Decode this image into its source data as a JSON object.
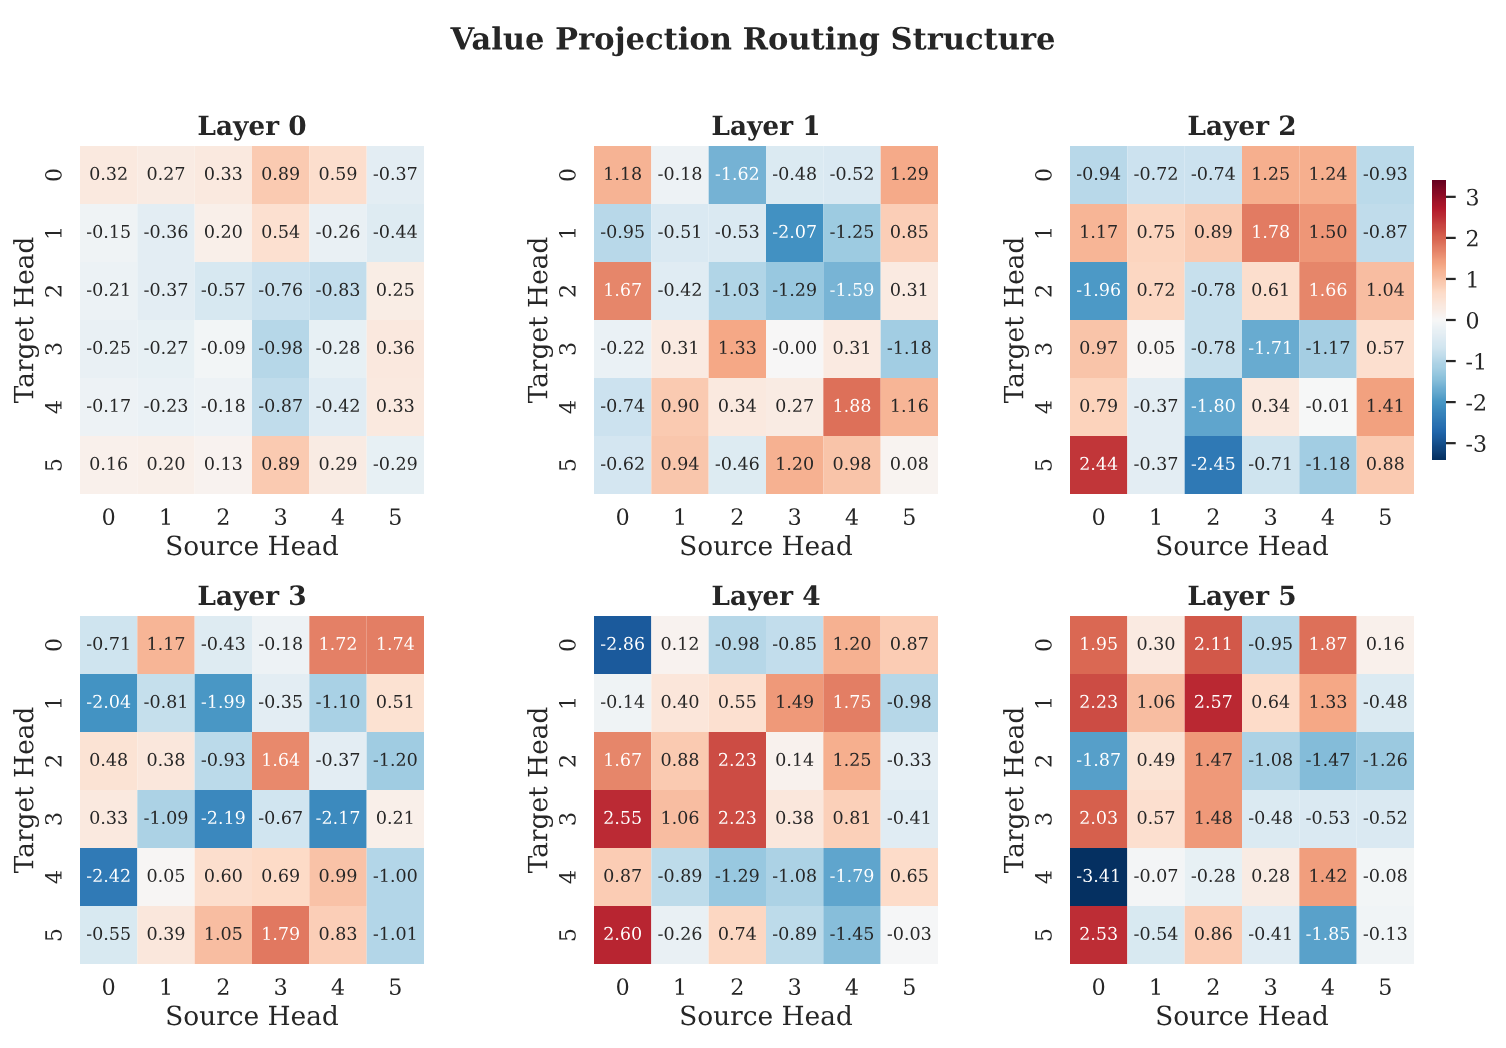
{
  "chart_data": [
    {
      "type": "heatmap",
      "title": "Layer 0",
      "annotations": [
        "Value Projection Routing Structure"
      ],
      "xlabel": "Source Head",
      "ylabel": "Target Head",
      "categories": [
        "0",
        "1",
        "2",
        "3",
        "4",
        "5"
      ],
      "y_categories": [
        "0",
        "1",
        "2",
        "3",
        "4",
        "5"
      ],
      "cells": [
        [
          0.32,
          0.27,
          0.33,
          0.89,
          0.59,
          -0.37
        ],
        [
          -0.15,
          -0.36,
          0.2,
          0.54,
          -0.26,
          -0.44
        ],
        [
          -0.21,
          -0.37,
          -0.57,
          -0.76,
          -0.83,
          0.25
        ],
        [
          -0.25,
          -0.27,
          -0.09,
          -0.98,
          -0.28,
          0.36
        ],
        [
          -0.17,
          -0.23,
          -0.18,
          -0.87,
          -0.42,
          0.33
        ],
        [
          0.16,
          0.2,
          0.13,
          0.89,
          0.29,
          -0.29
        ]
      ],
      "cell_labels": [
        [
          "0.32",
          "0.27",
          "0.33",
          "0.89",
          "0.59",
          "-0.37"
        ],
        [
          "-0.15",
          "-0.36",
          "0.20",
          "0.54",
          "-0.26",
          "-0.44"
        ],
        [
          "-0.21",
          "-0.37",
          "-0.57",
          "-0.76",
          "-0.83",
          "0.25"
        ],
        [
          "-0.25",
          "-0.27",
          "-0.09",
          "-0.98",
          "-0.28",
          "0.36"
        ],
        [
          "-0.17",
          "-0.23",
          "-0.18",
          "-0.87",
          "-0.42",
          "0.33"
        ],
        [
          "0.16",
          "0.20",
          "0.13",
          "0.89",
          "0.29",
          "-0.29"
        ]
      ]
    },
    {
      "type": "heatmap",
      "title": "Layer 1",
      "xlabel": "Source Head",
      "ylabel": "Target Head",
      "categories": [
        "0",
        "1",
        "2",
        "3",
        "4",
        "5"
      ],
      "y_categories": [
        "0",
        "1",
        "2",
        "3",
        "4",
        "5"
      ],
      "cells": [
        [
          1.18,
          -0.18,
          -1.62,
          -0.48,
          -0.52,
          1.29
        ],
        [
          -0.95,
          -0.51,
          -0.53,
          -2.07,
          -1.25,
          0.85
        ],
        [
          1.67,
          -0.42,
          -1.03,
          -1.29,
          -1.59,
          0.31
        ],
        [
          -0.22,
          0.31,
          1.33,
          0.0,
          0.31,
          -1.18
        ],
        [
          -0.74,
          0.9,
          0.34,
          0.27,
          1.88,
          1.16
        ],
        [
          -0.62,
          0.94,
          -0.46,
          1.2,
          0.98,
          0.08
        ]
      ],
      "cell_labels": [
        [
          "1.18",
          "-0.18",
          "-1.62",
          "-0.48",
          "-0.52",
          "1.29"
        ],
        [
          "-0.95",
          "-0.51",
          "-0.53",
          "-2.07",
          "-1.25",
          "0.85"
        ],
        [
          "1.67",
          "-0.42",
          "-1.03",
          "-1.29",
          "-1.59",
          "0.31"
        ],
        [
          "-0.22",
          "0.31",
          "1.33",
          "-0.00",
          "0.31",
          "-1.18"
        ],
        [
          "-0.74",
          "0.90",
          "0.34",
          "0.27",
          "1.88",
          "1.16"
        ],
        [
          "-0.62",
          "0.94",
          "-0.46",
          "1.20",
          "0.98",
          "0.08"
        ]
      ]
    },
    {
      "type": "heatmap",
      "title": "Layer 2",
      "xlabel": "Source Head",
      "ylabel": "Target Head",
      "categories": [
        "0",
        "1",
        "2",
        "3",
        "4",
        "5"
      ],
      "y_categories": [
        "0",
        "1",
        "2",
        "3",
        "4",
        "5"
      ],
      "clim": [
        -3.41,
        3.41
      ],
      "cticks": [
        -3,
        -2,
        -1,
        0,
        1,
        2,
        3
      ],
      "cells": [
        [
          -0.94,
          -0.72,
          -0.74,
          1.25,
          1.24,
          -0.93
        ],
        [
          1.17,
          0.75,
          0.89,
          1.78,
          1.5,
          -0.87
        ],
        [
          -1.96,
          0.72,
          -0.78,
          0.61,
          1.66,
          1.04
        ],
        [
          0.97,
          0.05,
          -0.78,
          -1.71,
          -1.17,
          0.57
        ],
        [
          0.79,
          -0.37,
          -1.8,
          0.34,
          -0.01,
          1.41
        ],
        [
          2.44,
          -0.37,
          -2.45,
          -0.71,
          -1.18,
          0.88
        ]
      ],
      "cell_labels": [
        [
          "-0.94",
          "-0.72",
          "-0.74",
          "1.25",
          "1.24",
          "-0.93"
        ],
        [
          "1.17",
          "0.75",
          "0.89",
          "1.78",
          "1.50",
          "-0.87"
        ],
        [
          "-1.96",
          "0.72",
          "-0.78",
          "0.61",
          "1.66",
          "1.04"
        ],
        [
          "0.97",
          "0.05",
          "-0.78",
          "-1.71",
          "-1.17",
          "0.57"
        ],
        [
          "0.79",
          "-0.37",
          "-1.80",
          "0.34",
          "-0.01",
          "1.41"
        ],
        [
          "2.44",
          "-0.37",
          "-2.45",
          "-0.71",
          "-1.18",
          "0.88"
        ]
      ]
    },
    {
      "type": "heatmap",
      "title": "Layer 3",
      "xlabel": "Source Head",
      "ylabel": "Target Head",
      "categories": [
        "0",
        "1",
        "2",
        "3",
        "4",
        "5"
      ],
      "y_categories": [
        "0",
        "1",
        "2",
        "3",
        "4",
        "5"
      ],
      "cells": [
        [
          -0.71,
          1.17,
          -0.43,
          -0.18,
          1.72,
          1.74
        ],
        [
          -2.04,
          -0.81,
          -1.99,
          -0.35,
          -1.1,
          0.51
        ],
        [
          0.48,
          0.38,
          -0.93,
          1.64,
          -0.37,
          -1.2
        ],
        [
          0.33,
          -1.09,
          -2.19,
          -0.67,
          -2.17,
          0.21
        ],
        [
          -2.42,
          0.05,
          0.6,
          0.69,
          0.99,
          -1.0
        ],
        [
          -0.55,
          0.39,
          1.05,
          1.79,
          0.83,
          -1.01
        ]
      ],
      "cell_labels": [
        [
          "-0.71",
          "1.17",
          "-0.43",
          "-0.18",
          "1.72",
          "1.74"
        ],
        [
          "-2.04",
          "-0.81",
          "-1.99",
          "-0.35",
          "-1.10",
          "0.51"
        ],
        [
          "0.48",
          "0.38",
          "-0.93",
          "1.64",
          "-0.37",
          "-1.20"
        ],
        [
          "0.33",
          "-1.09",
          "-2.19",
          "-0.67",
          "-2.17",
          "0.21"
        ],
        [
          "-2.42",
          "0.05",
          "0.60",
          "0.69",
          "0.99",
          "-1.00"
        ],
        [
          "-0.55",
          "0.39",
          "1.05",
          "1.79",
          "0.83",
          "-1.01"
        ]
      ]
    },
    {
      "type": "heatmap",
      "title": "Layer 4",
      "xlabel": "Source Head",
      "ylabel": "Target Head",
      "categories": [
        "0",
        "1",
        "2",
        "3",
        "4",
        "5"
      ],
      "y_categories": [
        "0",
        "1",
        "2",
        "3",
        "4",
        "5"
      ],
      "cells": [
        [
          -2.86,
          0.12,
          -0.98,
          -0.85,
          1.2,
          0.87
        ],
        [
          -0.14,
          0.4,
          0.55,
          1.49,
          1.75,
          -0.98
        ],
        [
          1.67,
          0.88,
          2.23,
          0.14,
          1.25,
          -0.33
        ],
        [
          2.55,
          1.06,
          2.23,
          0.38,
          0.81,
          -0.41
        ],
        [
          0.87,
          -0.89,
          -1.29,
          -1.08,
          -1.79,
          0.65
        ],
        [
          2.6,
          -0.26,
          0.74,
          -0.89,
          -1.45,
          -0.03
        ]
      ],
      "cell_labels": [
        [
          "-2.86",
          "0.12",
          "-0.98",
          "-0.85",
          "1.20",
          "0.87"
        ],
        [
          "-0.14",
          "0.40",
          "0.55",
          "1.49",
          "1.75",
          "-0.98"
        ],
        [
          "1.67",
          "0.88",
          "2.23",
          "0.14",
          "1.25",
          "-0.33"
        ],
        [
          "2.55",
          "1.06",
          "2.23",
          "0.38",
          "0.81",
          "-0.41"
        ],
        [
          "0.87",
          "-0.89",
          "-1.29",
          "-1.08",
          "-1.79",
          "0.65"
        ],
        [
          "2.60",
          "-0.26",
          "0.74",
          "-0.89",
          "-1.45",
          "-0.03"
        ]
      ]
    },
    {
      "type": "heatmap",
      "title": "Layer 5",
      "xlabel": "Source Head",
      "ylabel": "Target Head",
      "categories": [
        "0",
        "1",
        "2",
        "3",
        "4",
        "5"
      ],
      "y_categories": [
        "0",
        "1",
        "2",
        "3",
        "4",
        "5"
      ],
      "cells": [
        [
          1.95,
          0.3,
          2.11,
          -0.95,
          1.87,
          0.16
        ],
        [
          2.23,
          1.06,
          2.57,
          0.64,
          1.33,
          -0.48
        ],
        [
          -1.87,
          0.49,
          1.47,
          -1.08,
          -1.47,
          -1.26
        ],
        [
          2.03,
          0.57,
          1.48,
          -0.48,
          -0.53,
          -0.52
        ],
        [
          -3.41,
          -0.07,
          -0.28,
          0.28,
          1.42,
          -0.08
        ],
        [
          2.53,
          -0.54,
          0.86,
          -0.41,
          -1.85,
          -0.13
        ]
      ],
      "cell_labels": [
        [
          "1.95",
          "0.30",
          "2.11",
          "-0.95",
          "1.87",
          "0.16"
        ],
        [
          "2.23",
          "1.06",
          "2.57",
          "0.64",
          "1.33",
          "-0.48"
        ],
        [
          "-1.87",
          "0.49",
          "1.47",
          "-1.08",
          "-1.47",
          "-1.26"
        ],
        [
          "2.03",
          "0.57",
          "1.48",
          "-0.48",
          "-0.53",
          "-0.52"
        ],
        [
          "-3.41",
          "-0.07",
          "-0.28",
          "0.28",
          "1.42",
          "-0.08"
        ],
        [
          "2.53",
          "-0.54",
          "0.86",
          "-0.41",
          "-1.85",
          "-0.13"
        ]
      ]
    }
  ]
}
